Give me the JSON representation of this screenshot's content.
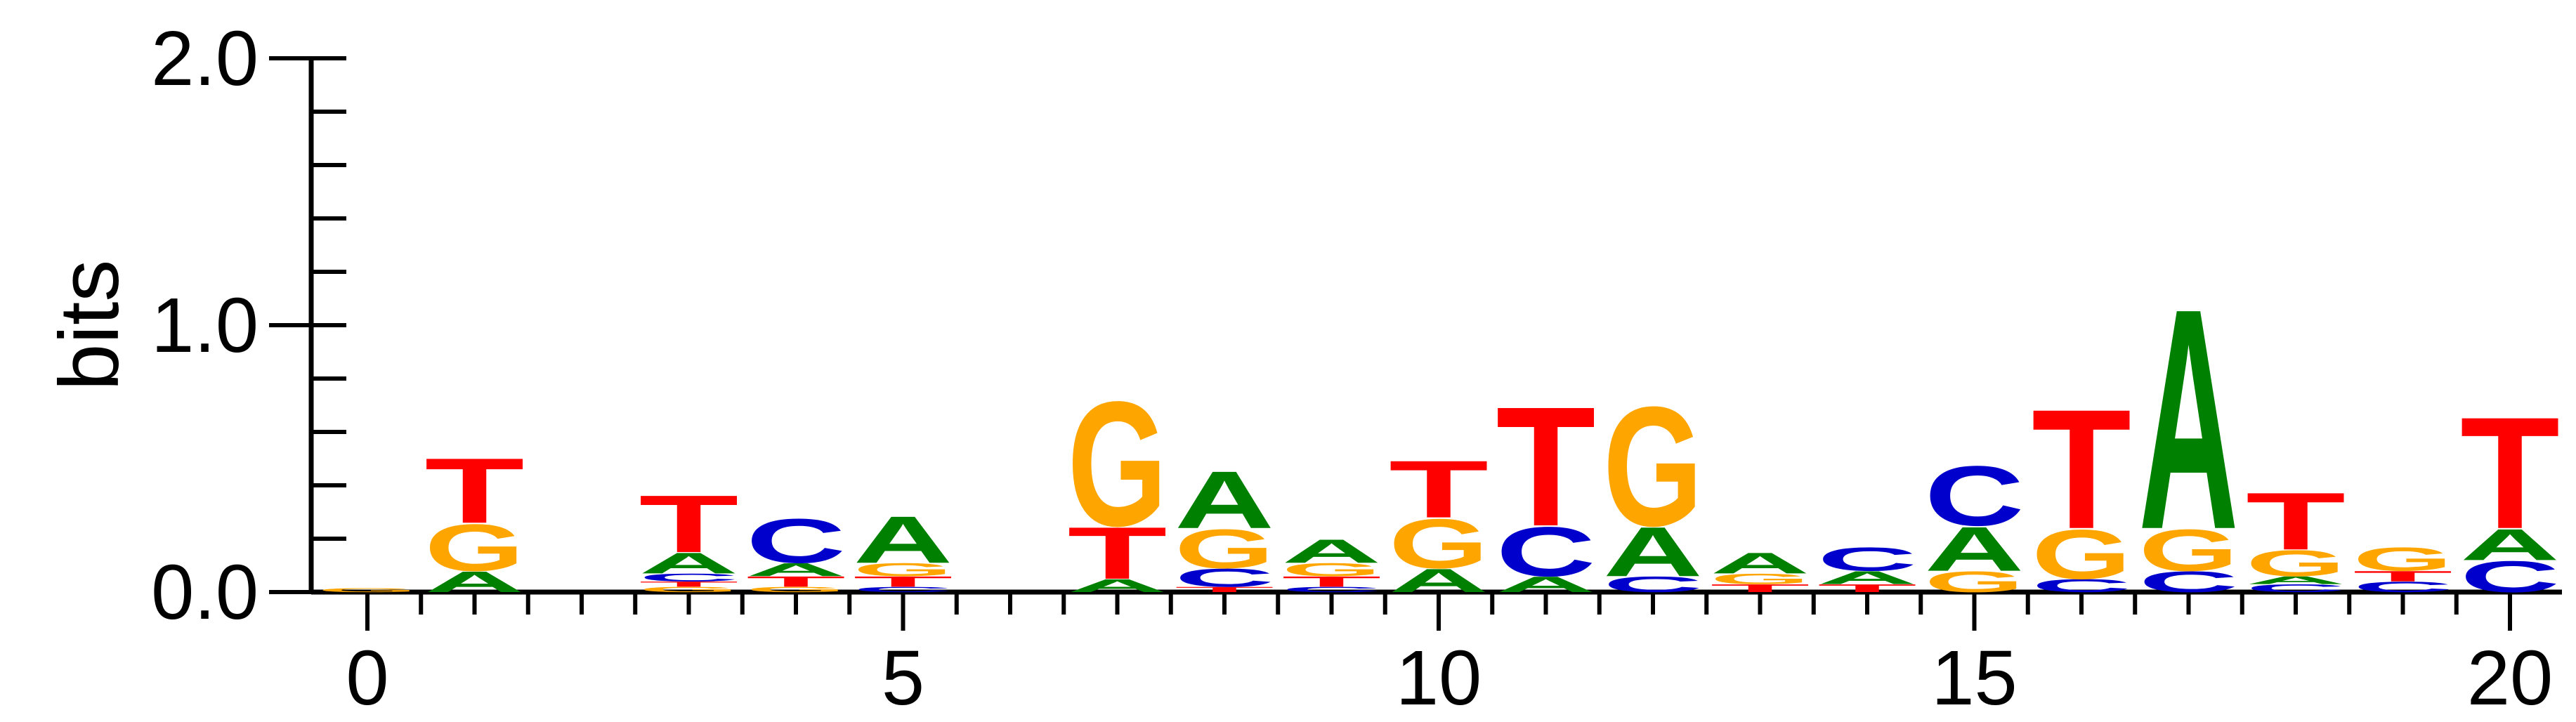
{
  "chart_data": {
    "type": "sequence-logo",
    "ylabel": "bits",
    "ylim": [
      0,
      2.0
    ],
    "yticks": [
      "0.0",
      "1.0",
      "2.0"
    ],
    "xticks": [
      "0",
      "5",
      "10",
      "15",
      "20"
    ],
    "colors": {
      "A": "#008000",
      "C": "#0000cc",
      "G": "#ffa500",
      "T": "#ff0000"
    },
    "positions": [
      {
        "pos": 0,
        "stack": [
          [
            "G",
            0.015
          ]
        ]
      },
      {
        "pos": 1,
        "stack": [
          [
            "A",
            0.08
          ],
          [
            "G",
            0.18
          ],
          [
            "T",
            0.25
          ]
        ]
      },
      {
        "pos": 2,
        "stack": []
      },
      {
        "pos": 3,
        "stack": [
          [
            "G",
            0.02
          ],
          [
            "T",
            0.02
          ],
          [
            "C",
            0.03
          ],
          [
            "A",
            0.08
          ],
          [
            "T",
            0.22
          ]
        ]
      },
      {
        "pos": 4,
        "stack": [
          [
            "G",
            0.02
          ],
          [
            "T",
            0.04
          ],
          [
            "A",
            0.05
          ],
          [
            "C",
            0.17
          ]
        ]
      },
      {
        "pos": 5,
        "stack": [
          [
            "C",
            0.02
          ],
          [
            "T",
            0.04
          ],
          [
            "G",
            0.05
          ],
          [
            "A",
            0.18
          ]
        ]
      },
      {
        "pos": 6,
        "stack": []
      },
      {
        "pos": 7,
        "stack": [
          [
            "A",
            0.05
          ],
          [
            "T",
            0.2
          ],
          [
            "G",
            0.48
          ]
        ]
      },
      {
        "pos": 8,
        "stack": [
          [
            "T",
            0.02
          ],
          [
            "C",
            0.07
          ],
          [
            "G",
            0.15
          ],
          [
            "A",
            0.22
          ]
        ]
      },
      {
        "pos": 9,
        "stack": [
          [
            "C",
            0.02
          ],
          [
            "T",
            0.04
          ],
          [
            "G",
            0.05
          ],
          [
            "A",
            0.09
          ]
        ]
      },
      {
        "pos": 10,
        "stack": [
          [
            "A",
            0.09
          ],
          [
            "G",
            0.19
          ],
          [
            "T",
            0.22
          ]
        ]
      },
      {
        "pos": 11,
        "stack": [
          [
            "A",
            0.06
          ],
          [
            "C",
            0.19
          ],
          [
            "T",
            0.46
          ]
        ]
      },
      {
        "pos": 12,
        "stack": [
          [
            "C",
            0.06
          ],
          [
            "A",
            0.19
          ],
          [
            "G",
            0.46
          ]
        ]
      },
      {
        "pos": 13,
        "stack": [
          [
            "T",
            0.03
          ],
          [
            "G",
            0.04
          ],
          [
            "A",
            0.08
          ]
        ]
      },
      {
        "pos": 14,
        "stack": [
          [
            "T",
            0.03
          ],
          [
            "A",
            0.05
          ],
          [
            "C",
            0.09
          ]
        ]
      },
      {
        "pos": 15,
        "stack": [
          [
            "G",
            0.08
          ],
          [
            "A",
            0.17
          ],
          [
            "C",
            0.23
          ]
        ]
      },
      {
        "pos": 16,
        "stack": [
          [
            "C",
            0.05
          ],
          [
            "G",
            0.19
          ],
          [
            "T",
            0.46
          ]
        ]
      },
      {
        "pos": 17,
        "stack": [
          [
            "C",
            0.08
          ],
          [
            "G",
            0.16
          ],
          [
            "A",
            0.85
          ]
        ]
      },
      {
        "pos": 18,
        "stack": [
          [
            "C",
            0.03
          ],
          [
            "A",
            0.03
          ],
          [
            "G",
            0.1
          ],
          [
            "T",
            0.22
          ]
        ]
      },
      {
        "pos": 19,
        "stack": [
          [
            "C",
            0.04
          ],
          [
            "T",
            0.04
          ],
          [
            "G",
            0.09
          ]
        ]
      },
      {
        "pos": 20,
        "stack": [
          [
            "C",
            0.12
          ],
          [
            "A",
            0.12
          ],
          [
            "T",
            0.43
          ]
        ]
      }
    ]
  }
}
